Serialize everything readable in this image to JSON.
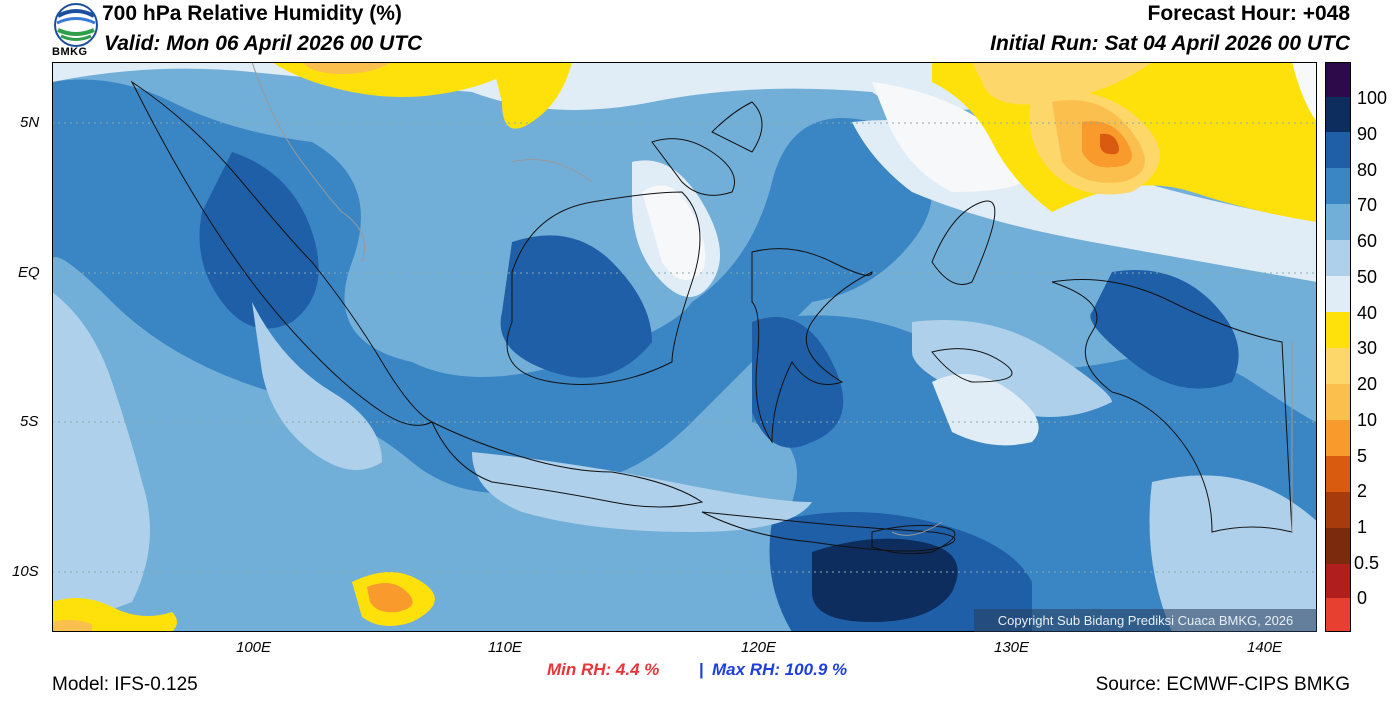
{
  "header": {
    "title": "700 hPa Relative Humidity (%)",
    "valid": "Valid: Mon 06 April 2026 00 UTC",
    "forecast_hour": "Forecast Hour: +048",
    "initial_run": "Initial Run: Sat 04 April 2026 00 UTC"
  },
  "logo": {
    "text": "BMKG",
    "icon": "bmkg-logo-icon"
  },
  "axes": {
    "lat_labels": [
      "5N",
      "EQ",
      "5S",
      "10S"
    ],
    "lat_values": [
      5,
      0,
      -5,
      -10
    ],
    "lon_labels": [
      "100E",
      "110E",
      "120E",
      "130E",
      "140E"
    ],
    "lon_values": [
      100,
      110,
      120,
      130,
      140
    ],
    "lon_range": [
      92,
      142
    ],
    "lat_range": [
      -12,
      7
    ]
  },
  "colorbar": {
    "labels": [
      "100",
      "90",
      "80",
      "70",
      "60",
      "50",
      "40",
      "30",
      "20",
      "10",
      "5",
      "2",
      "1",
      "0.5",
      "0"
    ],
    "colors": [
      "#2d0a4a",
      "#0d2d5e",
      "#1f5fa8",
      "#3a86c4",
      "#72afd8",
      "#aed0ea",
      "#e1edf6",
      "#f6f8fa",
      "#fee10a",
      "#fdd76a",
      "#fbbf4d",
      "#f99a2c",
      "#d85b10",
      "#a73b0c",
      "#7c2a0e",
      "#5e1e0c",
      "#b01e1e",
      "#e84030"
    ]
  },
  "stats": {
    "min_rh": "Min RH:   4.4 %",
    "separator": "|",
    "max_rh": "Max RH: 100.9 %"
  },
  "footer": {
    "model": "Model: IFS-0.125",
    "source": "Source: ECMWF-CIPS BMKG",
    "copyright": "Copyright Sub Bidang Prediksi Cuaca BMKG, 2026"
  }
}
